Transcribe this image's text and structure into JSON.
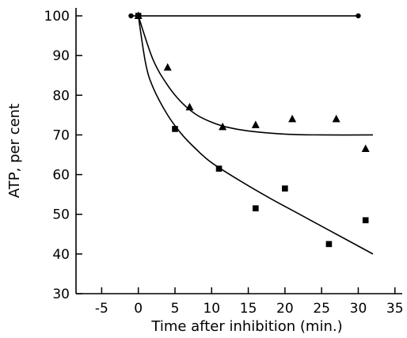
{
  "chart_data": {
    "type": "scatter",
    "title": "",
    "xlabel": "Time after inhibition (min.)",
    "ylabel": "ATP, per cent",
    "xlim": [
      -8.5,
      36
    ],
    "ylim": [
      30,
      102
    ],
    "x_ticks": [
      -5,
      0,
      5,
      10,
      15,
      20,
      25,
      30,
      35
    ],
    "y_ticks": [
      30,
      40,
      50,
      60,
      70,
      80,
      90,
      100
    ],
    "x_tick_labels": [
      "-5",
      "0",
      "5",
      "10",
      "15",
      "20",
      "25",
      "30",
      "35"
    ],
    "y_tick_labels": [
      "30",
      "40",
      "50",
      "60",
      "70",
      "80",
      "90",
      "100"
    ],
    "grid": false,
    "legend": "none",
    "series": [
      {
        "marker": "circle",
        "points": [
          [
            -1,
            100
          ],
          [
            0,
            100
          ],
          [
            30,
            100
          ]
        ],
        "curve": [
          [
            -1,
            100
          ],
          [
            30,
            100
          ]
        ]
      },
      {
        "marker": "triangle",
        "points": [
          [
            0,
            100
          ],
          [
            4,
            87
          ],
          [
            7,
            77
          ],
          [
            11.5,
            72
          ],
          [
            16,
            72.5
          ],
          [
            21,
            74
          ],
          [
            27,
            74
          ],
          [
            31,
            66.5
          ]
        ],
        "curve": [
          [
            0,
            100
          ],
          [
            2,
            89
          ],
          [
            4,
            82.5
          ],
          [
            6,
            78
          ],
          [
            8,
            75
          ],
          [
            10,
            73.2
          ],
          [
            12,
            72
          ],
          [
            15,
            71
          ],
          [
            20,
            70.2
          ],
          [
            25,
            70
          ],
          [
            32,
            70
          ]
        ]
      },
      {
        "marker": "square",
        "points": [
          [
            0,
            100
          ],
          [
            5,
            71.5
          ],
          [
            11,
            61.5
          ],
          [
            16,
            51.5
          ],
          [
            20,
            56.5
          ],
          [
            26,
            42.5
          ],
          [
            31,
            48.5
          ]
        ],
        "curve": [
          [
            0,
            100
          ],
          [
            1,
            88
          ],
          [
            2,
            82
          ],
          [
            4,
            75
          ],
          [
            6,
            70
          ],
          [
            8,
            66.2
          ],
          [
            10,
            63
          ],
          [
            14,
            58.3
          ],
          [
            18,
            54
          ],
          [
            22,
            50
          ],
          [
            26,
            46
          ],
          [
            32,
            40
          ]
        ]
      }
    ]
  }
}
